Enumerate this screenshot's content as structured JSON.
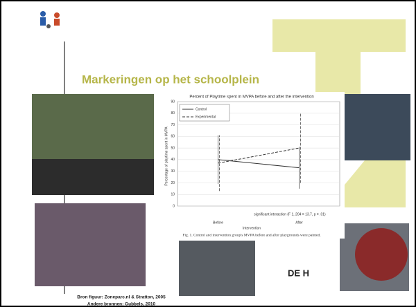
{
  "slide": {
    "title": "Markeringen op het schoolplein",
    "source": "Bron figuur: Zoneparc.nl & Stratton, 2005",
    "other_sources": "Andere bronnen: Gubbels, 2010",
    "logo": "DE H"
  },
  "chart_data": {
    "type": "line",
    "title": "Percent of Playtime spent in MVPA before and after the intervention",
    "y_label": "Percentage of playtime spent in MVPA",
    "x_label": "Intervention",
    "categories": [
      "Before",
      "After"
    ],
    "series": [
      {
        "name": "Control",
        "color": "#333333",
        "line_style": "solid",
        "values": [
          40,
          33
        ],
        "errors": [
          21,
          18
        ]
      },
      {
        "name": "Experimental",
        "color": "#333333",
        "line_style": "dashed",
        "values": [
          37,
          50
        ],
        "errors": [
          24,
          30
        ]
      }
    ],
    "ylim": [
      0,
      90
    ],
    "yticks": [
      0,
      10,
      20,
      30,
      40,
      50,
      60,
      70,
      80,
      90
    ],
    "grid": true,
    "legend": "upper left",
    "annotation": "significant interaction (F 1, 204 = 13.7, p = .01)",
    "caption": "Fig. 1. Control and intervention group's MVPA before and after playgrounds were painted."
  }
}
